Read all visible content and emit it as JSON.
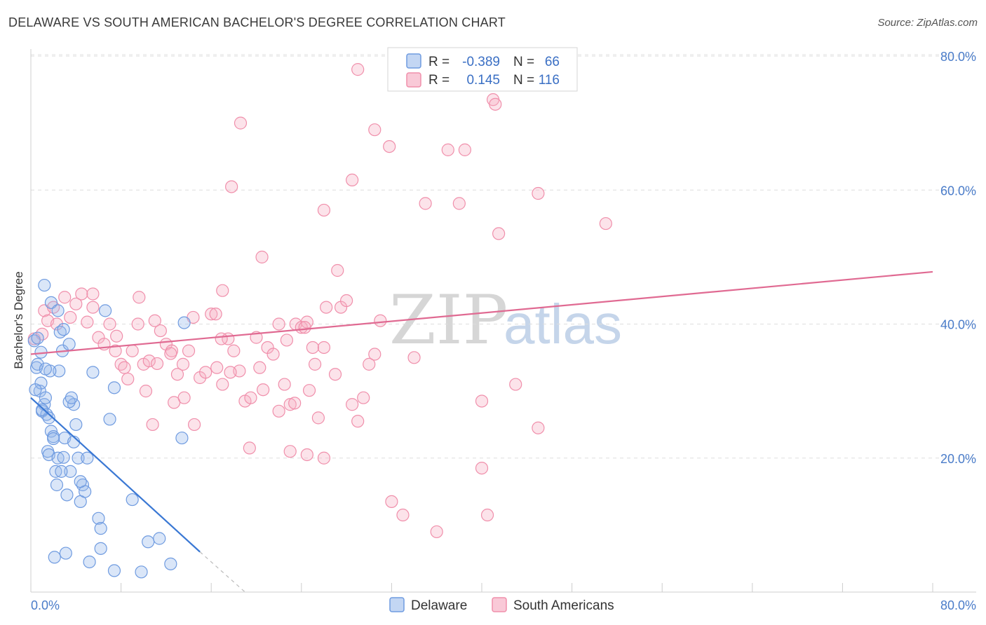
{
  "title": "DELAWARE VS SOUTH AMERICAN BACHELOR'S DEGREE CORRELATION CHART",
  "source": "Source: ZipAtlas.com",
  "watermark": {
    "zip": "ZIP",
    "atlas": "atlas"
  },
  "legend": {
    "rows": [
      {
        "r_label": "R =",
        "r_value": "-0.389",
        "n_label": "N =",
        "n_value": "66",
        "color": "#6f9be0"
      },
      {
        "r_label": "R =",
        "r_value": "0.145",
        "n_label": "N =",
        "n_value": "116",
        "color": "#f08fab"
      }
    ]
  },
  "bottom_legend": [
    "Delaware",
    "South Americans"
  ],
  "colors": {
    "delaware": "#6f9be0",
    "south_americans": "#f08fab",
    "delaware_line": "#3a78d4",
    "sa_line": "#e06a92"
  },
  "chart_data": {
    "type": "scatter",
    "title": "DELAWARE VS SOUTH AMERICAN BACHELOR'S DEGREE CORRELATION CHART",
    "xlabel": "",
    "ylabel": "Bachelor's Degree",
    "xlim": [
      0,
      80
    ],
    "ylim": [
      0,
      80
    ],
    "x_tick_labels": [
      "0.0%",
      "80.0%"
    ],
    "y_tick_labels": [
      "20.0%",
      "40.0%",
      "60.0%",
      "80.0%"
    ],
    "y_ticks": [
      20,
      40,
      60,
      80
    ],
    "series": [
      {
        "name": "Delaware",
        "r": -0.389,
        "n": 66,
        "trend": {
          "x": [
            0,
            15
          ],
          "y": [
            29.0,
            6.0
          ],
          "dashed_to": [
            19,
            0
          ]
        },
        "points": [
          [
            0.3,
            37.5
          ],
          [
            0.5,
            33.5
          ],
          [
            0.6,
            34
          ],
          [
            0.8,
            30
          ],
          [
            0.9,
            31.2
          ],
          [
            1,
            27
          ],
          [
            1.2,
            28
          ],
          [
            1.3,
            29
          ],
          [
            1.4,
            26.5
          ],
          [
            1.5,
            21
          ],
          [
            1.6,
            20.5
          ],
          [
            1.8,
            24
          ],
          [
            2,
            23.2
          ],
          [
            2.2,
            18
          ],
          [
            2.3,
            16
          ],
          [
            2.4,
            20
          ],
          [
            2.5,
            33
          ],
          [
            2.6,
            38.8
          ],
          [
            2.8,
            36
          ],
          [
            3,
            23
          ],
          [
            3.2,
            14.5
          ],
          [
            3.5,
            18
          ],
          [
            3.8,
            22.4
          ],
          [
            4,
            25
          ],
          [
            4.2,
            20
          ],
          [
            4.4,
            13.5
          ],
          [
            4.6,
            16
          ],
          [
            4.8,
            15
          ],
          [
            5,
            20
          ],
          [
            5.5,
            32.8
          ],
          [
            6,
            11
          ],
          [
            6.2,
            9.5
          ],
          [
            6.6,
            42
          ],
          [
            7,
            25.8
          ],
          [
            7.4,
            30.5
          ],
          [
            1.2,
            45.8
          ],
          [
            1.8,
            43.2
          ],
          [
            2.4,
            42
          ],
          [
            2.9,
            39.2
          ],
          [
            3.4,
            37
          ],
          [
            3.8,
            28
          ],
          [
            4.4,
            16.5
          ],
          [
            5.2,
            4.5
          ],
          [
            6.2,
            6.5
          ],
          [
            7.4,
            3.2
          ],
          [
            9,
            13.8
          ],
          [
            10.4,
            7.5
          ],
          [
            11.4,
            8
          ],
          [
            12.4,
            4.2
          ],
          [
            13.4,
            23
          ],
          [
            13.6,
            40.2
          ],
          [
            2.1,
            5.2
          ],
          [
            3.1,
            5.8
          ],
          [
            1.6,
            26
          ],
          [
            0.9,
            35.8
          ],
          [
            1.0,
            27.2
          ],
          [
            1.7,
            33
          ],
          [
            2.0,
            22.9
          ],
          [
            2.9,
            20.1
          ],
          [
            3.4,
            28.4
          ],
          [
            0.6,
            37.9
          ],
          [
            1.3,
            33.3
          ],
          [
            9.8,
            3.0
          ],
          [
            2.7,
            18.0
          ],
          [
            3.6,
            29.0
          ],
          [
            0.4,
            30.2
          ]
        ]
      },
      {
        "name": "South Americans",
        "r": 0.145,
        "n": 116,
        "trend": {
          "x": [
            0,
            80
          ],
          "y": [
            35.5,
            47.8
          ]
        },
        "points": [
          [
            0.3,
            37.8
          ],
          [
            1,
            38.5
          ],
          [
            1.2,
            42
          ],
          [
            1.5,
            40.5
          ],
          [
            2,
            42.5
          ],
          [
            2.3,
            40
          ],
          [
            3,
            44
          ],
          [
            3.5,
            41
          ],
          [
            4,
            43
          ],
          [
            4.5,
            44.5
          ],
          [
            5,
            40.3
          ],
          [
            5.5,
            42.5
          ],
          [
            6,
            38
          ],
          [
            6.5,
            37
          ],
          [
            7,
            40
          ],
          [
            7.5,
            36
          ],
          [
            8,
            34
          ],
          [
            8.3,
            33.5
          ],
          [
            9,
            36
          ],
          [
            9.5,
            40
          ],
          [
            10,
            34
          ],
          [
            10.5,
            34.5
          ],
          [
            11,
            40.5
          ],
          [
            11.5,
            39
          ],
          [
            12,
            37
          ],
          [
            12.5,
            36
          ],
          [
            13,
            32.5
          ],
          [
            13.5,
            34
          ],
          [
            14,
            36
          ],
          [
            15,
            32
          ],
          [
            15.5,
            32.8
          ],
          [
            16,
            41.5
          ],
          [
            16.5,
            33.5
          ],
          [
            17,
            31
          ],
          [
            17.5,
            37.8
          ],
          [
            18,
            36
          ],
          [
            18.5,
            33
          ],
          [
            19,
            28.5
          ],
          [
            19.5,
            29
          ],
          [
            20,
            38
          ],
          [
            21,
            36.5
          ],
          [
            21.5,
            35.5
          ],
          [
            22,
            27
          ],
          [
            22.5,
            31
          ],
          [
            23,
            28
          ],
          [
            23.5,
            40
          ],
          [
            24,
            39.5
          ],
          [
            24.5,
            40.3
          ],
          [
            25,
            36.5
          ],
          [
            25.5,
            26
          ],
          [
            26,
            20
          ],
          [
            27,
            32.5
          ],
          [
            27.5,
            42.5
          ],
          [
            28,
            43.5
          ],
          [
            28.5,
            28
          ],
          [
            29,
            25.5
          ],
          [
            29.5,
            29
          ],
          [
            30,
            34
          ],
          [
            30.5,
            35.5
          ],
          [
            31,
            40.5
          ],
          [
            32,
            13.5
          ],
          [
            33,
            11.5
          ],
          [
            34,
            35
          ],
          [
            35,
            58
          ],
          [
            36,
            9
          ],
          [
            37,
            66
          ],
          [
            38,
            58
          ],
          [
            38.5,
            66
          ],
          [
            40,
            28.5
          ],
          [
            40,
            18.5
          ],
          [
            40.5,
            11.5
          ],
          [
            41,
            73.5
          ],
          [
            41.2,
            72.8
          ],
          [
            41.5,
            53.5
          ],
          [
            43,
            31
          ],
          [
            45,
            59.5
          ],
          [
            45,
            24.5
          ],
          [
            51,
            55
          ],
          [
            29,
            78
          ],
          [
            30.5,
            69
          ],
          [
            31.8,
            66.5
          ],
          [
            28.5,
            61.5
          ],
          [
            17.8,
            60.5
          ],
          [
            18.6,
            70
          ],
          [
            26,
            57
          ],
          [
            20.5,
            50
          ],
          [
            27.2,
            48
          ],
          [
            17,
            45
          ],
          [
            26.2,
            42.5
          ],
          [
            5.5,
            44.5
          ],
          [
            9.6,
            44
          ],
          [
            14.4,
            41
          ],
          [
            16.4,
            41.5
          ],
          [
            22,
            40
          ],
          [
            24.3,
            39.5
          ],
          [
            26,
            36.5
          ],
          [
            12.4,
            35.6
          ],
          [
            13.6,
            29
          ],
          [
            10.2,
            30
          ],
          [
            16.9,
            37.8
          ],
          [
            20.3,
            33.5
          ],
          [
            22.7,
            37.6
          ],
          [
            14.5,
            25
          ],
          [
            17.7,
            32.8
          ],
          [
            20.6,
            30.2
          ],
          [
            23,
            21
          ],
          [
            24.5,
            20.5
          ],
          [
            25.2,
            34
          ],
          [
            10.8,
            25
          ],
          [
            8.6,
            31.8
          ],
          [
            11.2,
            34.1
          ],
          [
            19.4,
            21.5
          ],
          [
            23.4,
            28.2
          ],
          [
            24.7,
            30.1
          ],
          [
            12.7,
            28.3
          ],
          [
            7.6,
            38.2
          ]
        ]
      }
    ]
  }
}
